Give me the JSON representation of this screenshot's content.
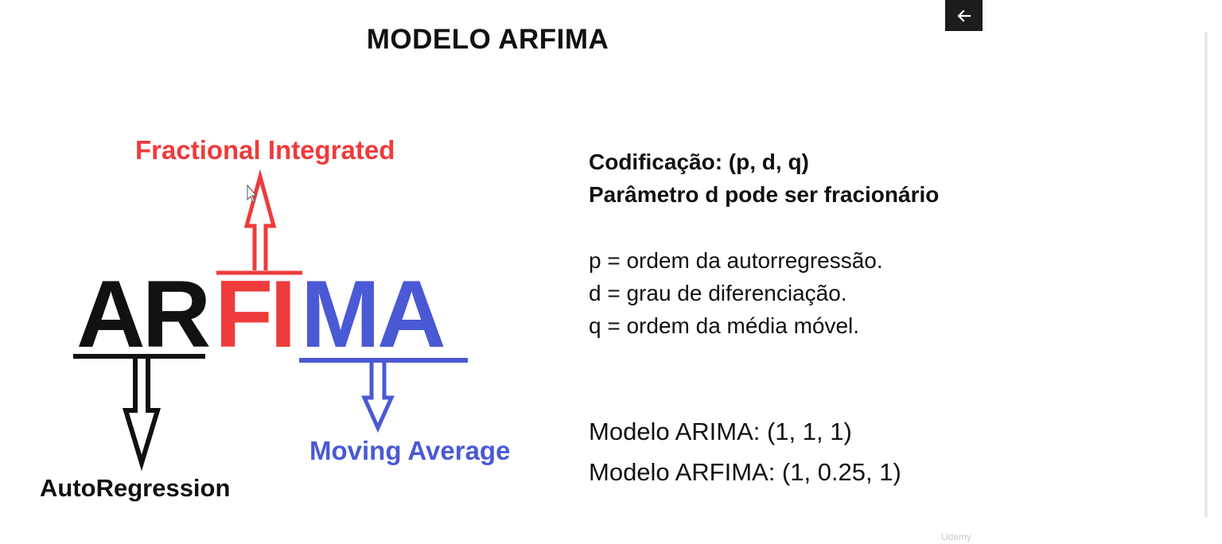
{
  "slide": {
    "title": "MODELO ARFIMA",
    "diagram": {
      "letters_ar": "AR",
      "letters_fi": "FI",
      "letters_ma": "MA",
      "label_fractional": "Fractional Integrated",
      "label_moving_average": "Moving Average",
      "label_autoregression": "AutoRegression",
      "colors": {
        "ar": "#111111",
        "fi": "#ee3b3b",
        "ma": "#4a59d4"
      }
    },
    "codification": "Codificação: (p, d, q)",
    "param_note": "Parâmetro d pode ser fracionário",
    "definitions": [
      "p = ordem da autorregressão.",
      "d = grau de diferenciação.",
      "q = ordem da média móvel."
    ],
    "examples": [
      "Modelo ARIMA: (1, 1, 1)",
      "Modelo ARFIMA: (1, 0.25, 1)"
    ],
    "watermark": "Udemy"
  },
  "controls": {
    "back_icon": "arrow-left-icon"
  }
}
